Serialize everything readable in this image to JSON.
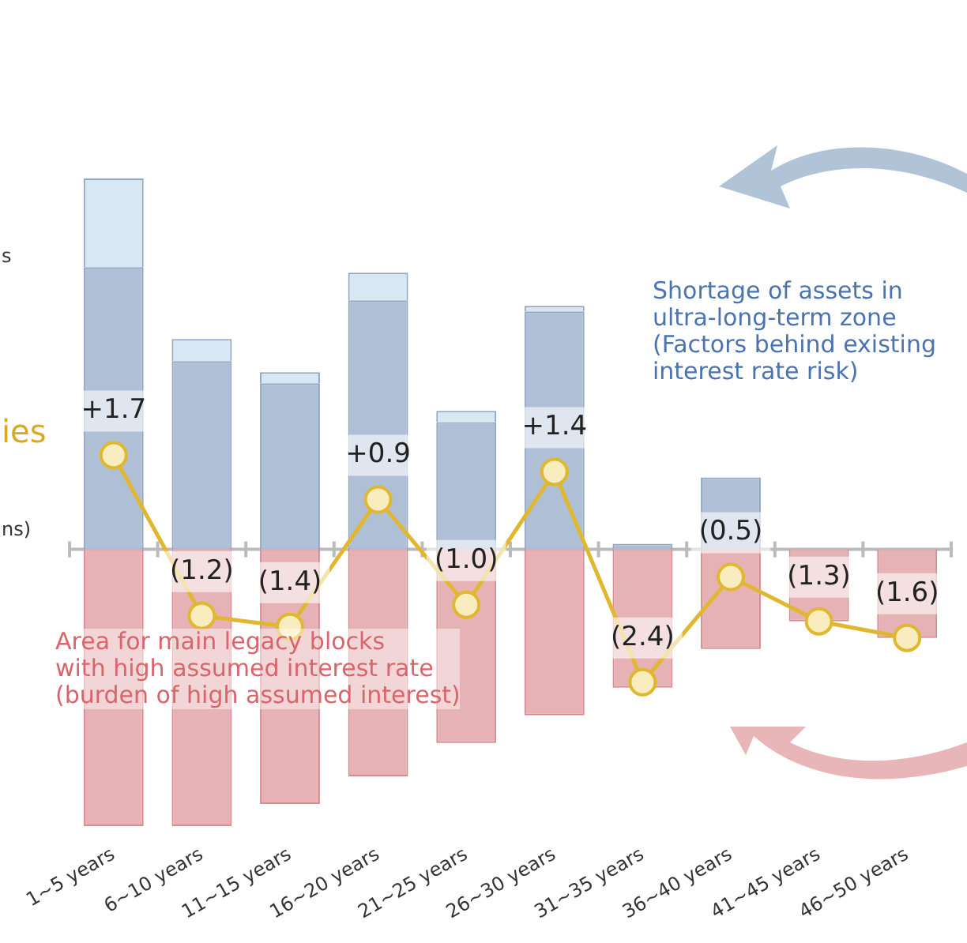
{
  "chart_data": {
    "type": "bar",
    "stacked": true,
    "tick_labels": "x",
    "grid": false,
    "legend": false,
    "categories": [
      "1~5 years",
      "6~10 years",
      "11~15 years",
      "16~20 years",
      "21~25 years",
      "26~30 years",
      "31~35 years",
      "36~40 years",
      "41~45 years",
      "46~50 years"
    ],
    "series": [
      {
        "color": "#a9bcd3",
        "values": [
          5.1,
          3.4,
          3.0,
          4.5,
          2.3,
          4.3,
          0.1,
          1.3,
          0,
          0
        ]
      },
      {
        "color": "#d5e6f2",
        "values": [
          1.6,
          0.4,
          0.2,
          0.5,
          0.2,
          0.1,
          0,
          0,
          0,
          0
        ]
      },
      {
        "color": "#e5adb0",
        "values": [
          -5.0,
          -5.0,
          -4.6,
          -4.1,
          -3.5,
          -3.0,
          -2.5,
          -1.8,
          -1.3,
          -1.6
        ]
      },
      {
        "type": "line",
        "color": "#e0b830",
        "marker": "circle",
        "values": [
          1.7,
          -1.2,
          -1.4,
          0.9,
          -1.0,
          1.4,
          -2.4,
          -0.5,
          -1.3,
          -1.6
        ],
        "value_labels": [
          "+1.7",
          "(1.2)",
          "(1.4)",
          "+0.9",
          "(1.0)",
          "+1.4",
          "(2.4)",
          "(0.5)",
          "(1.3)",
          "(1.6)"
        ]
      }
    ],
    "annotations": [
      "Shortage of assets in\nultra-long-term zone\n(Factors behind existing\ninterest rate risk)",
      "Area for main legacy blocks\nwith high assumed interest rate\n(burden of high assumed interest)",
      "s",
      "ies",
      "ns)"
    ]
  }
}
